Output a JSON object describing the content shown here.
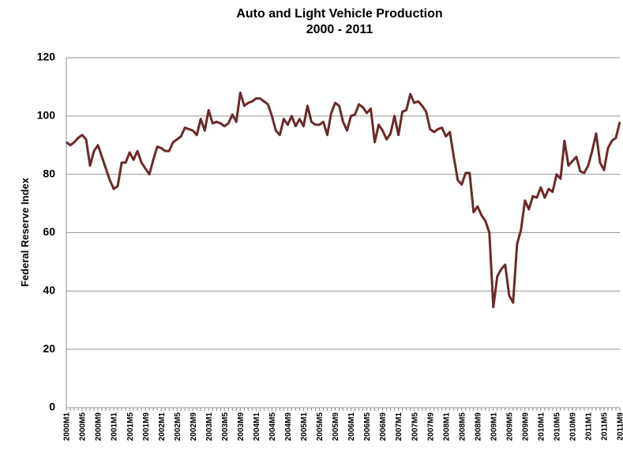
{
  "chart_data": {
    "type": "line",
    "title": "Auto and Light Vehicle Production",
    "subtitle": "2000 - 2011",
    "y_label": "Federal Reserve Index",
    "categories": [
      "2000M1",
      null,
      null,
      null,
      "2000M5",
      null,
      null,
      null,
      "2000M9",
      null,
      null,
      null,
      "2001M1",
      null,
      null,
      null,
      "2001M5",
      null,
      null,
      null,
      "2001M9",
      null,
      null,
      null,
      "2002M1",
      null,
      null,
      null,
      "2002M5",
      null,
      null,
      null,
      "2002M9",
      null,
      null,
      null,
      "2003M1",
      null,
      null,
      null,
      "2003M5",
      null,
      null,
      null,
      "2003M9",
      null,
      null,
      null,
      "2004M1",
      null,
      null,
      null,
      "2004M5",
      null,
      null,
      null,
      "2004M9",
      null,
      null,
      null,
      "2005M1",
      null,
      null,
      null,
      "2005M5",
      null,
      null,
      null,
      "2005M9",
      null,
      null,
      null,
      "2006M1",
      null,
      null,
      null,
      "2006M5",
      null,
      null,
      null,
      "2006M9",
      null,
      null,
      null,
      "2007M1",
      null,
      null,
      null,
      "2007M5",
      null,
      null,
      null,
      "2007M9",
      null,
      null,
      null,
      "2008M1",
      null,
      null,
      null,
      "2008M5",
      null,
      null,
      null,
      "2008M9",
      null,
      null,
      null,
      "2009M1",
      null,
      null,
      null,
      "2009M5",
      null,
      null,
      null,
      "2009M9",
      null,
      null,
      null,
      "2010M1",
      null,
      null,
      null,
      "2010M5",
      null,
      null,
      null,
      "2010M9",
      null,
      null,
      null,
      "2011M1",
      null,
      null,
      null,
      "2011M5",
      null,
      null,
      null,
      "2011M9"
    ],
    "values": [
      91,
      90,
      91,
      92.5,
      93.5,
      92,
      83,
      88,
      90,
      86,
      82,
      78,
      75,
      76,
      84,
      84,
      87.5,
      85,
      88,
      84,
      82,
      80,
      85,
      89.5,
      89,
      88,
      88,
      91,
      92,
      93,
      96,
      95.5,
      95,
      93.5,
      99,
      95,
      102,
      97.5,
      98,
      97.5,
      96.5,
      97.5,
      100.5,
      98,
      108,
      103.5,
      104.5,
      105,
      106,
      106,
      105,
      104,
      100,
      95,
      93.5,
      99,
      97,
      100,
      96.5,
      99,
      96.5,
      103.5,
      98,
      97,
      97,
      98,
      93.5,
      101,
      104.5,
      103.5,
      98,
      95,
      100,
      100.5,
      104,
      103,
      101,
      102.5,
      91,
      97,
      95,
      92,
      94,
      100,
      93.5,
      101.5,
      102,
      107.5,
      104.5,
      105,
      103.5,
      101.5,
      95.5,
      94.5,
      95.5,
      96,
      93,
      94.5,
      86,
      78,
      76.5,
      80.5,
      80.5,
      67,
      69,
      66,
      64,
      60,
      34.5,
      45,
      47.5,
      49,
      38.5,
      36,
      56,
      61,
      71,
      68,
      72.5,
      72,
      75.5,
      72,
      75,
      74,
      80,
      78.5,
      91.5,
      83,
      84.5,
      86,
      81,
      80.5,
      83,
      88,
      94,
      84,
      81.5,
      89,
      91.5,
      92.5,
      98
    ],
    "color": "#6b2a2a",
    "ylim": [
      0,
      120
    ],
    "yticks": [
      0,
      20,
      40,
      60,
      80,
      100,
      120
    ],
    "grid": true
  }
}
